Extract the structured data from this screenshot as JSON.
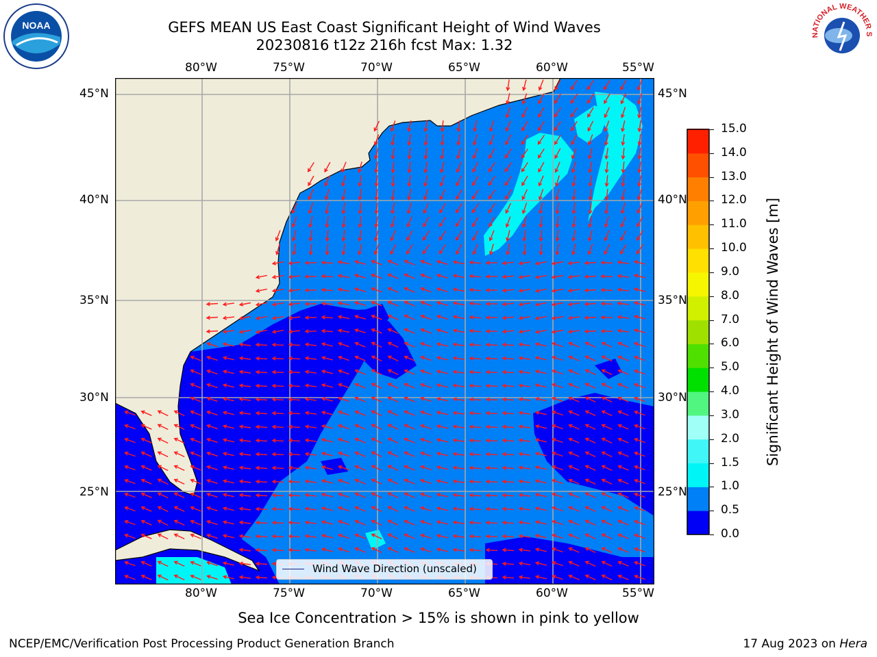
{
  "title": {
    "line1": "GEFS MEAN US East Coast Significant Height of Wind Waves",
    "line2": "20230816 t12z 216h fcst   Max: 1.32"
  },
  "map": {
    "lon_labels": [
      "80°W",
      "75°W",
      "70°W",
      "65°W",
      "60°W",
      "55°W"
    ],
    "lat_labels": [
      "45°N",
      "40°N",
      "35°N",
      "30°N",
      "25°N"
    ],
    "legend_label": "Wind Wave Direction (unscaled)",
    "colors": {
      "land": "#efecda",
      "ocean_dark": "#0000f6",
      "ocean_mid": "#0080f6",
      "ocean_cyan": "#00f6f6",
      "arrow": "#ff1a1a"
    }
  },
  "colorbar": {
    "label": "Significant Height of Wind Waves [m]",
    "ticks": [
      "15.0",
      "14.0",
      "13.0",
      "12.0",
      "11.0",
      "10.0",
      "9.0",
      "8.0",
      "7.0",
      "6.0",
      "5.0",
      "4.0",
      "3.0",
      "2.0",
      "1.5",
      "1.0",
      "0.5",
      "0.0"
    ],
    "colors": [
      "#0000f6",
      "#0080f6",
      "#00f6f6",
      "#40f6f6",
      "#a0fff6",
      "#50f680",
      "#00e000",
      "#50e000",
      "#a0e000",
      "#d0f000",
      "#f6f600",
      "#ffe000",
      "#ffc000",
      "#ffa000",
      "#ff8000",
      "#ff5000",
      "#ff2000",
      "#ff0000"
    ]
  },
  "subtitle": "Sea Ice Concentration > 15% is shown in pink to yellow",
  "footer": {
    "left": "NCEP/EMC/Verification Post Processing Product Generation Branch",
    "right_date": "17 Aug 2023 on ",
    "right_machine": "Hera"
  },
  "logos": {
    "noaa": "NOAA",
    "nws": "NATIONAL WEATHER SERVICE"
  }
}
